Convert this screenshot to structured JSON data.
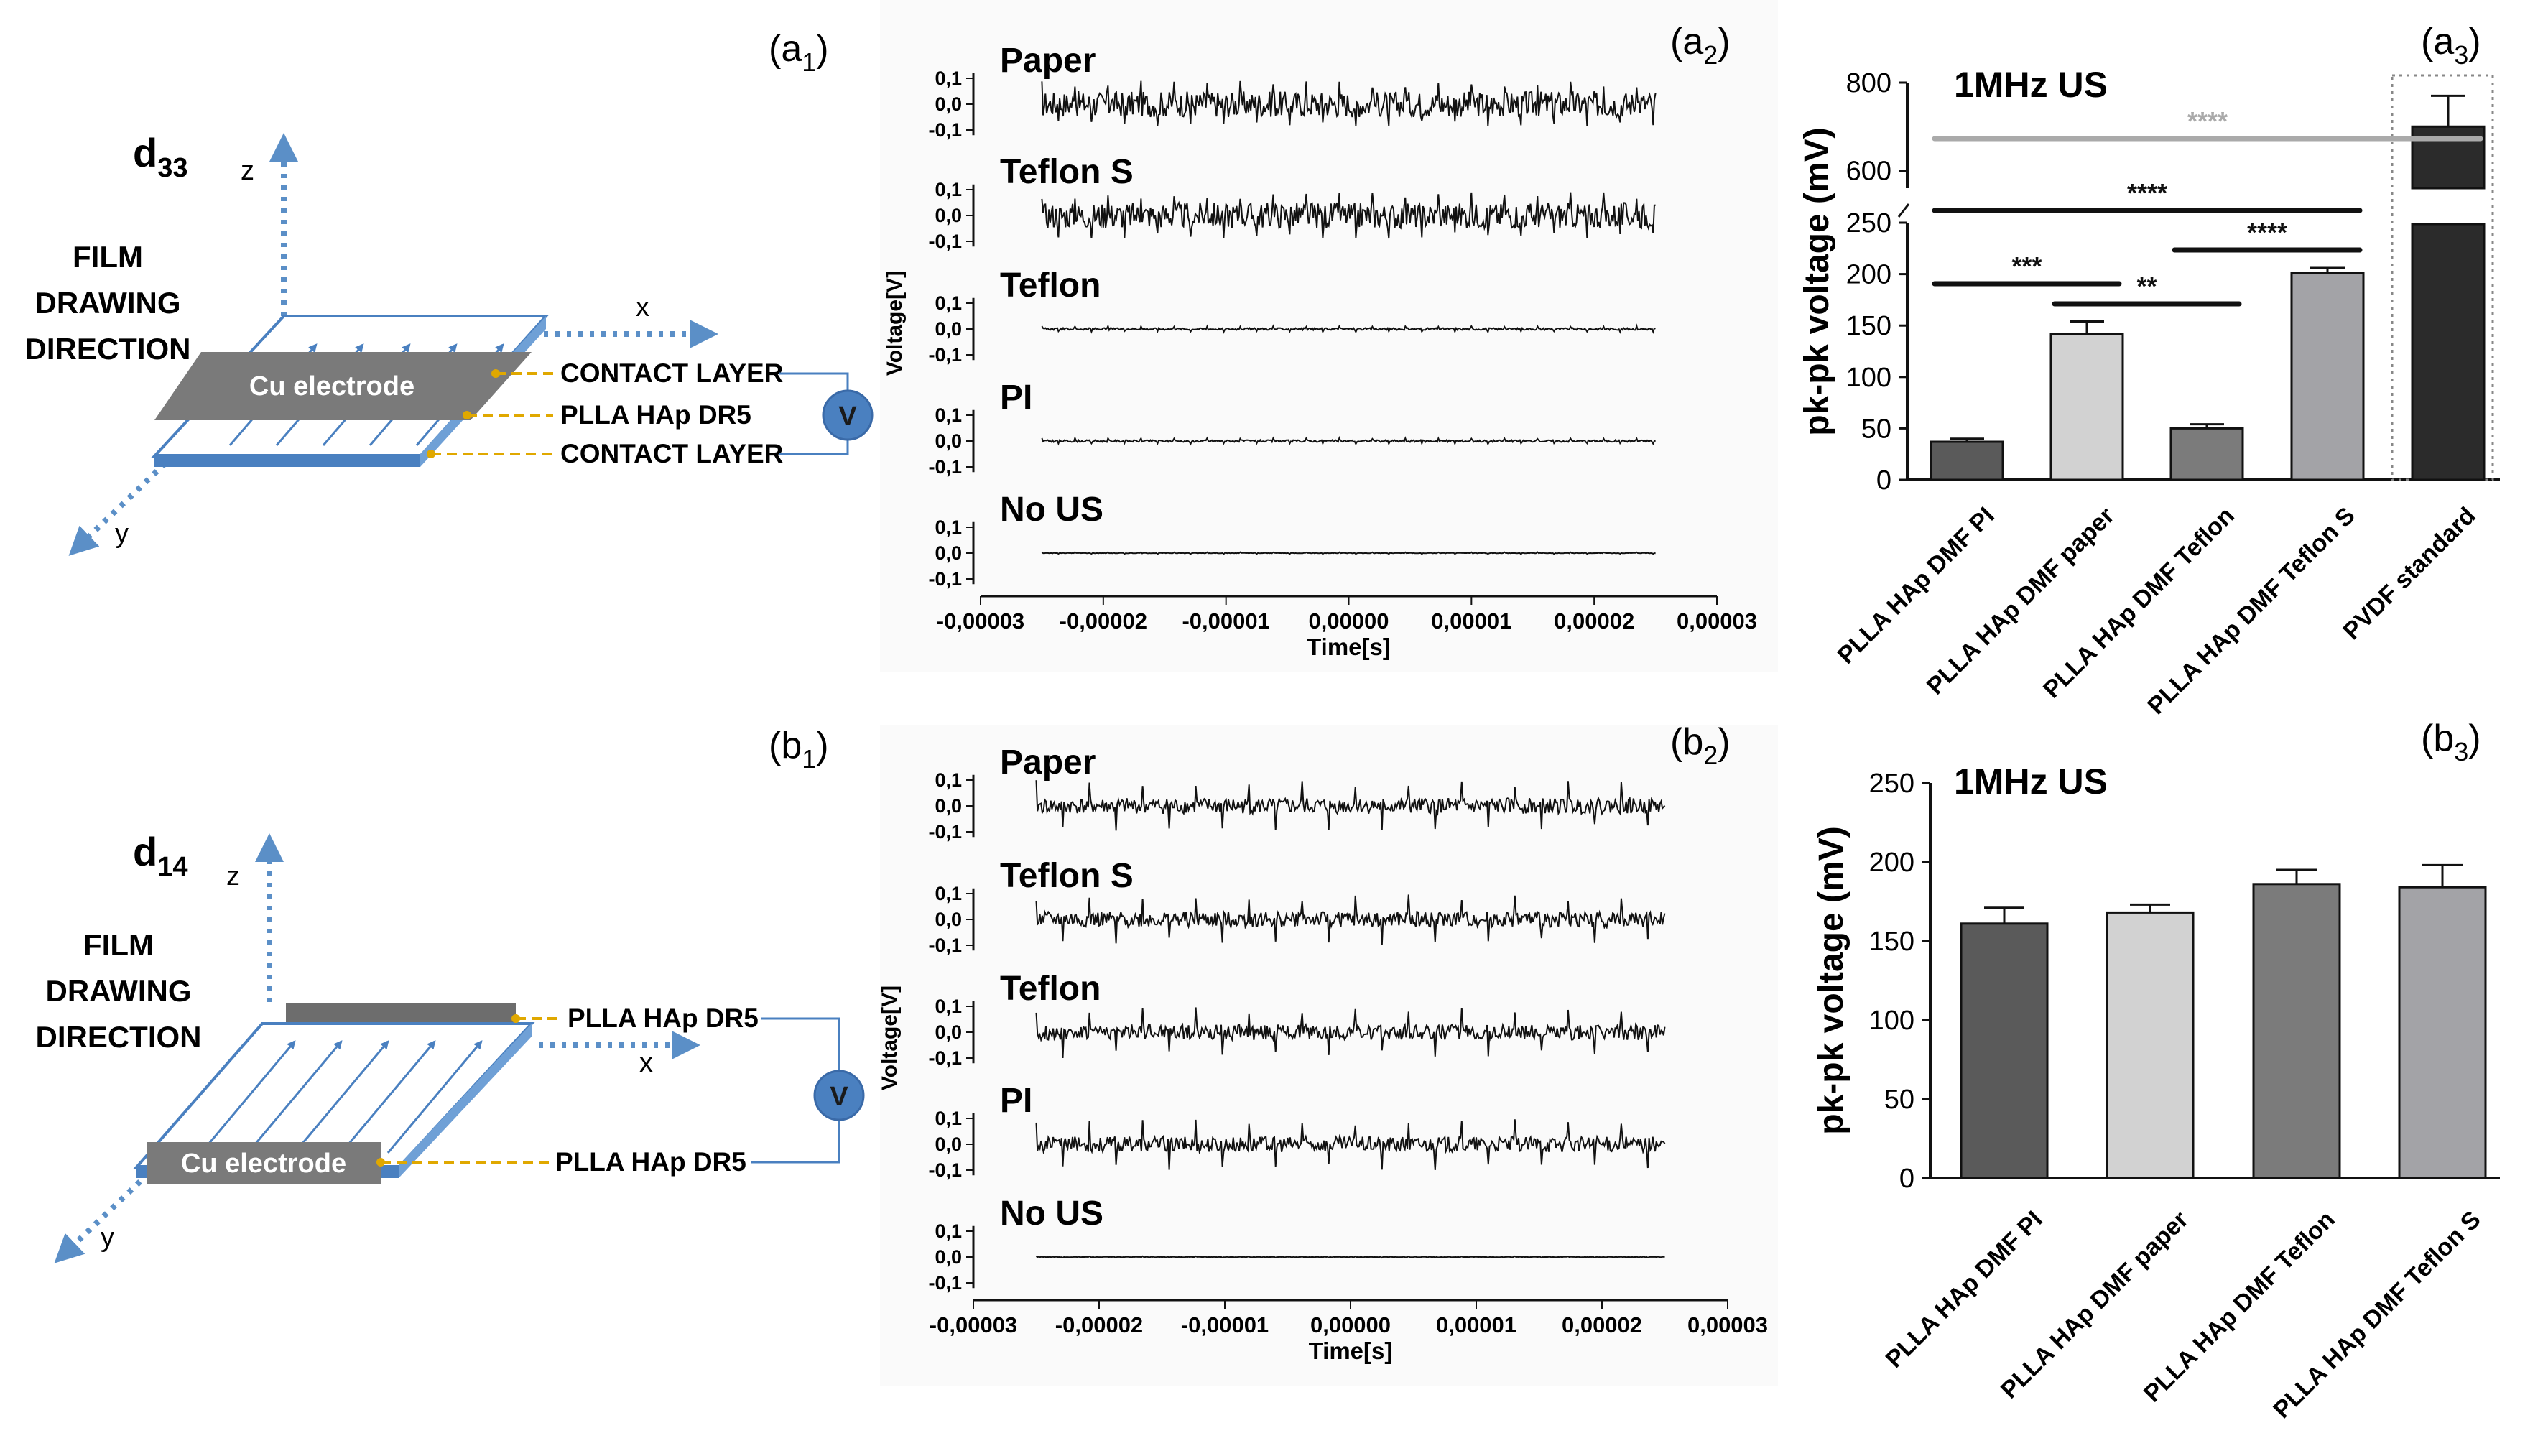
{
  "panels": {
    "a1": {
      "tag": "(a",
      "sub": "1",
      "close": ")"
    },
    "a2": {
      "tag": "(a",
      "sub": "2",
      "close": ")"
    },
    "a3": {
      "tag": "(a",
      "sub": "3",
      "close": ")"
    },
    "b1": {
      "tag": "(b",
      "sub": "1",
      "close": ")"
    },
    "b2": {
      "tag": "(b",
      "sub": "2",
      "close": ")"
    },
    "b3": {
      "tag": "(b",
      "sub": "3",
      "close": ")"
    }
  },
  "schematic_a": {
    "mode": "d",
    "mode_sub": "33",
    "film_direction": [
      "FILM",
      "DRAWING",
      "DIRECTION"
    ],
    "axes": {
      "z": "z",
      "x": "x",
      "y": "y"
    },
    "electrode": "Cu electrode",
    "labels": [
      "CONTACT LAYER",
      "PLLA HAp DR5",
      "CONTACT LAYER"
    ],
    "meter": "V"
  },
  "schematic_b": {
    "mode": "d",
    "mode_sub": "14",
    "film_direction": [
      "FILM",
      "DRAWING",
      "DIRECTION"
    ],
    "axes": {
      "z": "z",
      "x": "x",
      "y": "y"
    },
    "electrode": "Cu electrode",
    "labels": [
      "PLLA HAp DR5",
      "PLLA HAp DR5"
    ],
    "meter": "V"
  },
  "chart_data": [
    {
      "id": "a2",
      "type": "line",
      "xlabel": "Time[s]",
      "ylabel": "Voltage[V]",
      "xlim": [
        -3e-05,
        3e-05
      ],
      "x_ticks": [
        "-0,00003",
        "-0,00002",
        "-0,00001",
        "0,00000",
        "0,00001",
        "0,00002",
        "0,00003"
      ],
      "y_ticks": [
        "0,1",
        "0,0",
        "-0,1"
      ],
      "signal_span": [
        -2.5e-05,
        2.5e-05
      ],
      "series": [
        {
          "name": "Paper",
          "noise_amp": 0.05,
          "spike_amp": 0.09
        },
        {
          "name": "Teflon S",
          "noise_amp": 0.05,
          "spike_amp": 0.09
        },
        {
          "name": "Teflon",
          "noise_amp": 0.004,
          "spike_amp": 0.012
        },
        {
          "name": "PI",
          "noise_amp": 0.004,
          "spike_amp": 0.012
        },
        {
          "name": "No US",
          "noise_amp": 0.001,
          "spike_amp": 0.004
        }
      ]
    },
    {
      "id": "a3",
      "type": "bar",
      "title": "1MHz US",
      "ylabel": "pk-pk voltage (mV)",
      "categories": [
        "PLLA HAp DMF PI",
        "PLLA HAp DMF paper",
        "PLLA HAp DMF Teflon",
        "PLLA HAp DMF Teflon S",
        "PVDF standard"
      ],
      "values": [
        37,
        142,
        50,
        201,
        700
      ],
      "errors": [
        3,
        12,
        4,
        5,
        70
      ],
      "bar_colors": [
        "#5a5a5a",
        "#d2d2d2",
        "#7b7b7b",
        "#a3a3a7",
        "#2b2b2b"
      ],
      "y_ticks_low": [
        0,
        50,
        100,
        150,
        200,
        250
      ],
      "y_ticks_high": [
        600,
        800
      ],
      "axis_break": [
        250,
        560
      ],
      "significance": [
        {
          "from": 0,
          "to": 1,
          "label": "***"
        },
        {
          "from": 1,
          "to": 2,
          "label": "**"
        },
        {
          "from": 2,
          "to": 3,
          "label": "****"
        },
        {
          "from": 0,
          "to": 3,
          "label": "****"
        },
        {
          "from": 0,
          "to": 4,
          "label": "****"
        }
      ]
    },
    {
      "id": "b2",
      "type": "line",
      "xlabel": "Time[s]",
      "ylabel": "Voltage[V]",
      "xlim": [
        -3e-05,
        3e-05
      ],
      "x_ticks": [
        "-0,00003",
        "-0,00002",
        "-0,00001",
        "0,00000",
        "0,00001",
        "0,00002",
        "0,00003"
      ],
      "y_ticks": [
        "0,1",
        "0,0",
        "-0,1"
      ],
      "signal_span": [
        -2.5e-05,
        2.5e-05
      ],
      "series": [
        {
          "name": "Paper",
          "noise_amp": 0.03,
          "spike_amp": 0.1
        },
        {
          "name": "Teflon S",
          "noise_amp": 0.03,
          "spike_amp": 0.1
        },
        {
          "name": "Teflon",
          "noise_amp": 0.03,
          "spike_amp": 0.1
        },
        {
          "name": "PI",
          "noise_amp": 0.03,
          "spike_amp": 0.1
        },
        {
          "name": "No US",
          "noise_amp": 0.001,
          "spike_amp": 0.003
        }
      ]
    },
    {
      "id": "b3",
      "type": "bar",
      "title": "1MHz US",
      "ylabel": "pk-pk voltage (mV)",
      "categories": [
        "PLLA  HAp DMF PI",
        "PLLA  HAp DMF paper",
        "PLLA  HAp DMF Teflon",
        "PLLA  HAp DMF Teflon S"
      ],
      "values": [
        161,
        168,
        186,
        184
      ],
      "errors": [
        10,
        5,
        9,
        14
      ],
      "bar_colors": [
        "#5a5a5a",
        "#d2d2d2",
        "#7b7b7b",
        "#a3a3a7"
      ],
      "ylim": [
        0,
        250
      ],
      "y_ticks": [
        0,
        50,
        100,
        150,
        200,
        250
      ]
    }
  ]
}
